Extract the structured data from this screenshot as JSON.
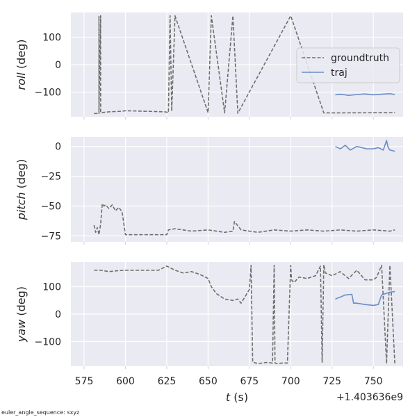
{
  "chart_data": {
    "type": "line",
    "footnote": "euler_angle_sequence: sxyz",
    "x_offset_label": "+1.403636e9",
    "x_ticks": [
      575,
      600,
      625,
      650,
      675,
      700,
      725,
      750
    ],
    "xlim": [
      567,
      768
    ],
    "xlabel_italic": "t",
    "xlabel_unit": " (s)",
    "legend": {
      "placement": "right",
      "entries": [
        {
          "name": "groundtruth",
          "style": "dashed",
          "color": "#6e6e6e"
        },
        {
          "name": "traj",
          "style": "solid",
          "color": "#6a8cc7"
        }
      ]
    },
    "panels": [
      {
        "id": "roll",
        "ylabel_italic": "roll",
        "ylabel_unit": " (deg)",
        "yticks": [
          100,
          0,
          -100
        ],
        "ytick_labels": [
          "100",
          "0",
          "−100"
        ],
        "ylim": [
          -190,
          190
        ],
        "show_legend": true,
        "series": [
          {
            "name": "groundtruth",
            "x": [
              581,
              584,
              584,
              584,
              585,
              585,
              590,
              598,
              600,
              624,
              626,
              627,
              628,
              630,
              650,
              652,
              660,
              665,
              668,
              700,
              720,
              763
            ],
            "y": [
              -178,
              -178,
              178,
              -178,
              178,
              -175,
              -172,
              -170,
              -168,
              -172,
              -175,
              178,
              -170,
              178,
              -175,
              178,
              -176,
              178,
              -177,
              178,
              -176,
              -175
            ]
          },
          {
            "name": "traj",
            "x": [
              727,
              730,
              735,
              740,
              745,
              750,
              755,
              760,
              763
            ],
            "y": [
              -110,
              -108,
              -112,
              -109,
              -107,
              -110,
              -108,
              -106,
              -109
            ]
          }
        ]
      },
      {
        "id": "pitch",
        "ylabel_italic": "pitch",
        "ylabel_unit": " (deg)",
        "yticks": [
          0,
          -25,
          -50,
          -75
        ],
        "ytick_labels": [
          "0",
          "−25",
          "−50",
          "−75"
        ],
        "ylim": [
          -80,
          8
        ],
        "show_legend": false,
        "series": [
          {
            "name": "groundtruth",
            "x": [
              581,
              582,
              583,
              584,
              585,
              586,
              587,
              588,
              590,
              592,
              594,
              596,
              598,
              600,
              610,
              625,
              626,
              630,
              640,
              650,
              660,
              665,
              666,
              670,
              680,
              690,
              700,
              710,
              720,
              730,
              740,
              750,
              760,
              763
            ],
            "y": [
              -66,
              -72,
              -68,
              -74,
              -65,
              -48,
              -50,
              -49,
              -52,
              -49,
              -54,
              -51,
              -55,
              -74,
              -74,
              -74,
              -70,
              -69,
              -71,
              -70,
              -72,
              -71,
              -63,
              -70,
              -72,
              -70,
              -71,
              -70,
              -71,
              -70,
              -71,
              -70,
              -71,
              -70
            ]
          },
          {
            "name": "traj",
            "x": [
              727,
              730,
              733,
              736,
              740,
              743,
              746,
              750,
              753,
              756,
              758,
              759,
              760,
              763
            ],
            "y": [
              0,
              -2,
              1,
              -3,
              0,
              -1,
              -2,
              -2,
              -1,
              -3,
              5,
              -1,
              -3,
              -4
            ]
          }
        ]
      },
      {
        "id": "yaw",
        "ylabel_italic": "yaw",
        "ylabel_unit": " (deg)",
        "yticks": [
          100,
          0,
          -100
        ],
        "ytick_labels": [
          "100",
          "0",
          "−100"
        ],
        "ylim": [
          -190,
          190
        ],
        "show_legend": false,
        "series": [
          {
            "name": "groundtruth",
            "x": [
              581,
              585,
              590,
              595,
              600,
              610,
              620,
              625,
              630,
              635,
              640,
              645,
              650,
              652,
              655,
              660,
              665,
              668,
              670,
              672,
              675,
              676,
              677,
              679,
              680,
              683,
              685,
              689,
              690,
              690.5,
              692,
              695,
              698,
              700,
              700.5,
              702,
              705,
              710,
              715,
              718,
              719,
              720,
              721,
              725,
              730,
              735,
              740,
              745,
              750,
              752,
              755,
              758,
              760,
              763
            ],
            "y": [
              160,
              160,
              155,
              158,
              160,
              160,
              160,
              175,
              160,
              150,
              155,
              145,
              130,
              100,
              75,
              55,
              50,
              55,
              40,
              60,
              90,
              178,
              -175,
              -178,
              -180,
              -178,
              -176,
              -178,
              178,
              -178,
              -180,
              -178,
              -178,
              178,
              125,
              115,
              135,
              130,
              140,
              175,
              -175,
              180,
              150,
              140,
              155,
              130,
              160,
              125,
              125,
              135,
              178,
              -180,
              178,
              -180
            ]
          },
          {
            "name": "traj",
            "x": [
              727,
              730,
              733,
              737,
              738,
              740,
              745,
              750,
              753,
              755,
              760,
              763
            ],
            "y": [
              55,
              62,
              70,
              72,
              40,
              40,
              35,
              32,
              35,
              70,
              80,
              82
            ]
          }
        ]
      }
    ]
  },
  "colors": {
    "axes_background": "#eaeaf2",
    "grid": "#ffffff",
    "groundtruth": "#6e6e6e",
    "traj": "#6a8cc7"
  }
}
